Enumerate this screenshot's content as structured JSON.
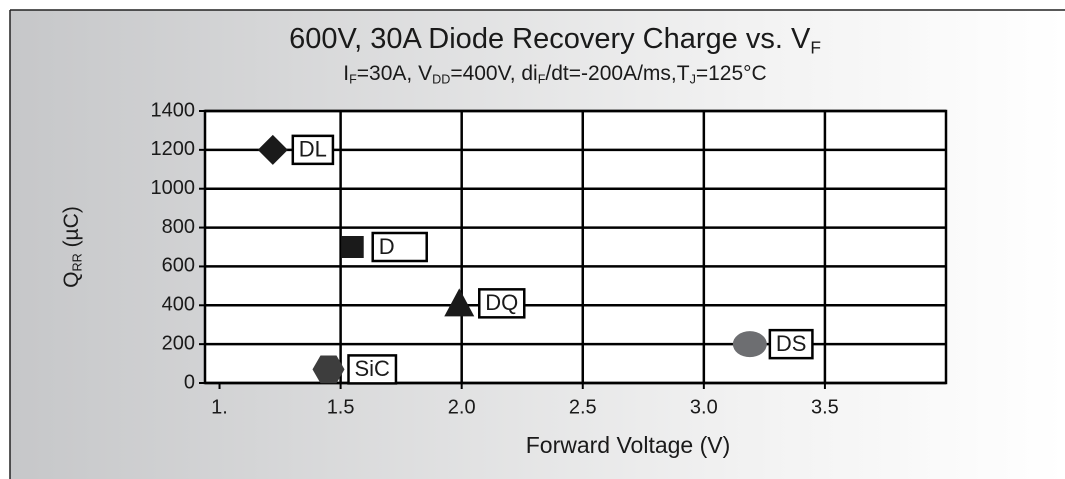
{
  "chart_data": {
    "type": "scatter",
    "title": [
      "600V, 30A Diode Recovery Charge vs. V",
      "F"
    ],
    "subtitle": [
      "I",
      "F",
      "=30A, V",
      "DD",
      "=400V, di",
      "F",
      "/dt=-200A/ms,T",
      "J",
      "=125°C"
    ],
    "xlabel": "Forward Voltage (V)",
    "ylabel": [
      "Q",
      "RR",
      " (µC)"
    ],
    "xlim": [
      0.94,
      4.0
    ],
    "ylim": [
      0,
      1400
    ],
    "xticks": [
      {
        "value": 1,
        "label": "1."
      },
      1.5,
      {
        "value": 2,
        "label": "2.0"
      },
      2.5,
      {
        "value": 3,
        "label": "3.0"
      },
      3.5
    ],
    "yticks": [
      0,
      200,
      400,
      600,
      800,
      1000,
      1200,
      1400
    ],
    "grid": true,
    "points": [
      {
        "label": "DL",
        "x": 1.22,
        "y": 1200,
        "marker": "diamond",
        "color": "#1a1a1a"
      },
      {
        "label": "D",
        "x": 1.55,
        "y": 700,
        "marker": "square",
        "color": "#1a1a1a"
      },
      {
        "label": "DQ",
        "x": 1.99,
        "y": 410,
        "marker": "triangle",
        "color": "#1a1a1a"
      },
      {
        "label": "DS",
        "x": 3.19,
        "y": 200,
        "marker": "circle",
        "color": "#6d6e71"
      },
      {
        "label": "SiC",
        "x": 1.45,
        "y": 70,
        "marker": "hexagon",
        "color": "#3d3d3d"
      }
    ]
  }
}
